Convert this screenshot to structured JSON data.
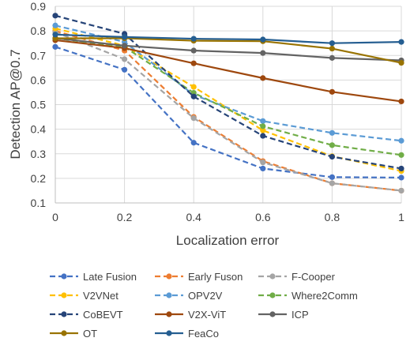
{
  "chart_data": {
    "type": "line",
    "title": "",
    "xlabel": "Localization error",
    "ylabel": "Detection AP@0.7",
    "x": [
      0,
      0.2,
      0.4,
      0.6,
      0.8,
      1
    ],
    "x_tick_labels": [
      "0",
      "0.2",
      "0.4",
      "0.6",
      "0.8",
      "1"
    ],
    "xlim": [
      0,
      1
    ],
    "ylim": [
      0.1,
      0.9
    ],
    "y_ticks": [
      0.1,
      0.2,
      0.3,
      0.4,
      0.5,
      0.6,
      0.7,
      0.8,
      0.9
    ],
    "y_tick_labels": [
      "0.1",
      "0.2",
      "0.3",
      "0.4",
      "0.5",
      "0.6",
      "0.7",
      "0.8",
      "0.9"
    ],
    "grid": true,
    "legend_position": "bottom",
    "series": [
      {
        "name": "Late Fusion",
        "color": "#4472C4",
        "dash": true,
        "values": [
          0.735,
          0.642,
          0.345,
          0.24,
          0.205,
          0.203
        ]
      },
      {
        "name": "Early Fuson",
        "color": "#ED7D31",
        "dash": true,
        "values": [
          0.8,
          0.72,
          0.45,
          0.27,
          0.18,
          0.15
        ]
      },
      {
        "name": "F-Cooper",
        "color": "#A5A5A5",
        "dash": true,
        "values": [
          0.795,
          0.685,
          0.445,
          0.265,
          0.18,
          0.15
        ]
      },
      {
        "name": "V2VNet",
        "color": "#FFC000",
        "dash": true,
        "values": [
          0.81,
          0.74,
          0.572,
          0.395,
          0.29,
          0.23
        ]
      },
      {
        "name": "OPV2V",
        "color": "#5B9BD5",
        "dash": true,
        "values": [
          0.822,
          0.755,
          0.54,
          0.433,
          0.385,
          0.353
        ]
      },
      {
        "name": "Where2Comm",
        "color": "#70AD47",
        "dash": true,
        "values": [
          0.77,
          0.735,
          0.548,
          0.412,
          0.335,
          0.295
        ]
      },
      {
        "name": "CoBEVT",
        "color": "#264478",
        "dash": true,
        "values": [
          0.862,
          0.788,
          0.533,
          0.373,
          0.288,
          0.24
        ]
      },
      {
        "name": "V2X-ViT",
        "color": "#9E480E",
        "dash": false,
        "values": [
          0.762,
          0.73,
          0.668,
          0.608,
          0.552,
          0.513
        ]
      },
      {
        "name": "ICP",
        "color": "#636363",
        "dash": false,
        "values": [
          0.77,
          0.74,
          0.72,
          0.71,
          0.69,
          0.68
        ]
      },
      {
        "name": "OT",
        "color": "#997300",
        "dash": false,
        "values": [
          0.77,
          0.77,
          0.76,
          0.758,
          0.728,
          0.67
        ]
      },
      {
        "name": "FeaCo",
        "color": "#255E91",
        "dash": false,
        "values": [
          0.785,
          0.775,
          0.768,
          0.765,
          0.75,
          0.755
        ]
      }
    ]
  }
}
